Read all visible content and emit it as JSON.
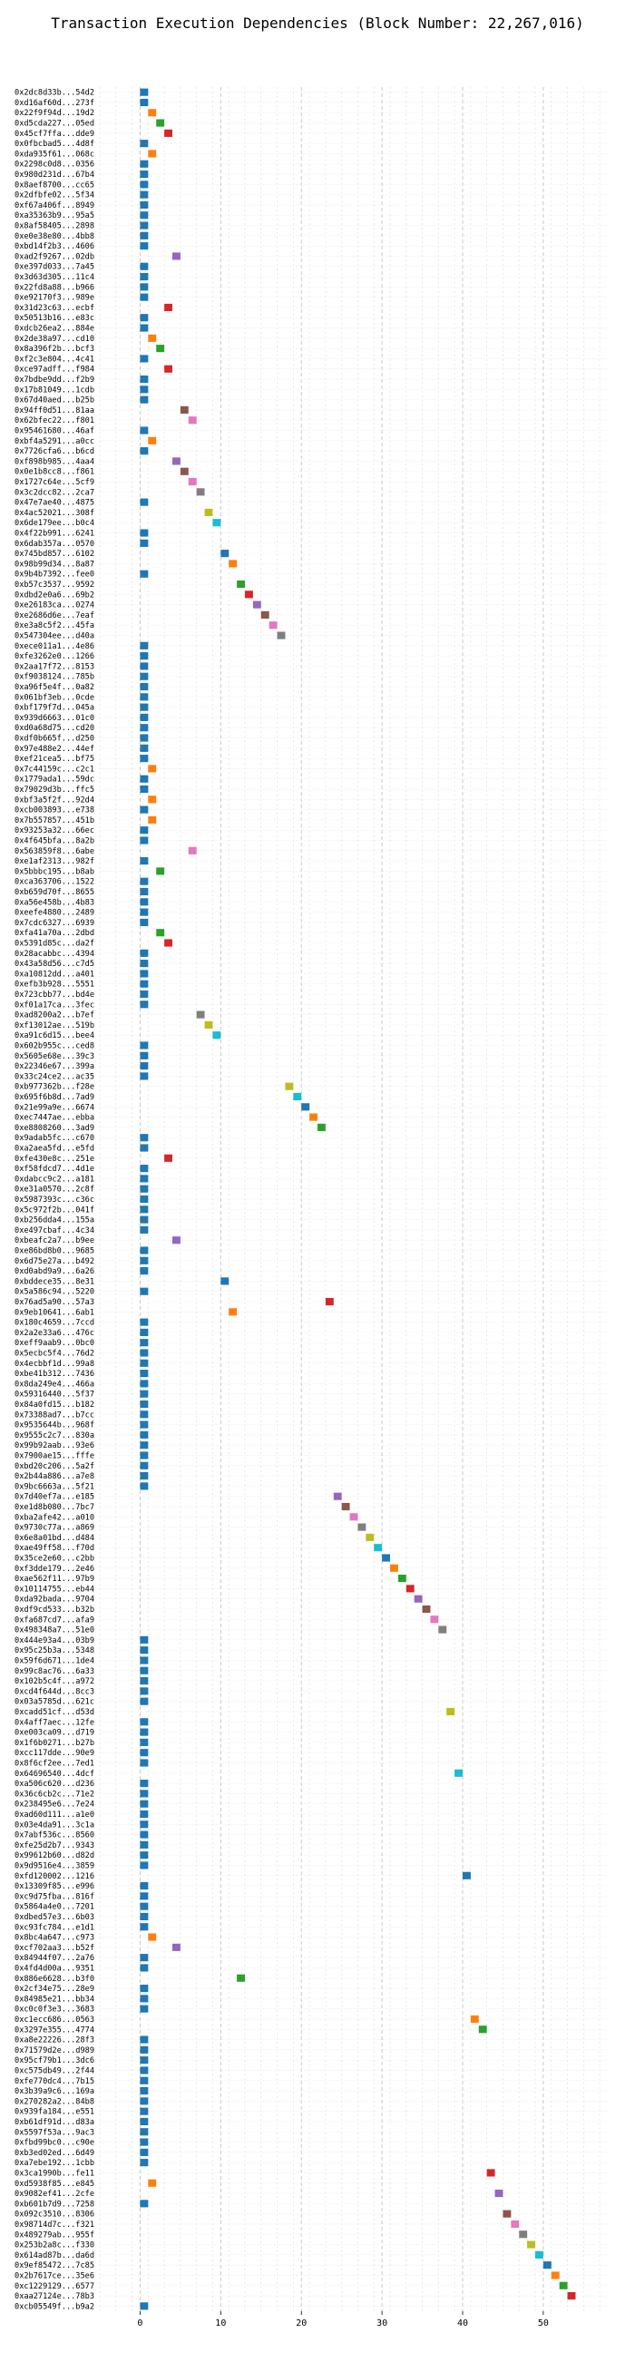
{
  "chart_data": {
    "type": "gantt",
    "title": "Transaction Execution Dependencies (Block Number: 22,267,016)",
    "xlabel": "",
    "ylabel": "",
    "xlim": [
      -5,
      58
    ],
    "xticks": [
      0,
      10,
      20,
      30,
      40,
      50
    ],
    "grid": true,
    "legend": "none",
    "palette": [
      "#1f77b4",
      "#ff7f0e",
      "#2ca02c",
      "#d62728",
      "#9467bd",
      "#8c564b",
      "#e377c2",
      "#7f7f7f",
      "#bcbd22",
      "#17becf"
    ],
    "transactions": [
      {
        "hash": "0x2dc8d33b...54d2",
        "start": 0
      },
      {
        "hash": "0xd16af60d...273f",
        "start": 0
      },
      {
        "hash": "0x22f9f94d...19d2",
        "start": 1
      },
      {
        "hash": "0xd5cda227...05ed",
        "start": 2
      },
      {
        "hash": "0x45cf7ffa...dde9",
        "start": 3
      },
      {
        "hash": "0x0fbcbad5...4d8f",
        "start": 0
      },
      {
        "hash": "0xda935f61...068c",
        "start": 1
      },
      {
        "hash": "0x2298c0d8...0356",
        "start": 0
      },
      {
        "hash": "0x980d231d...67b4",
        "start": 0
      },
      {
        "hash": "0x8aef8700...cc65",
        "start": 0
      },
      {
        "hash": "0x2dfbfe02...5f34",
        "start": 0
      },
      {
        "hash": "0xf67a406f...8949",
        "start": 0
      },
      {
        "hash": "0xa35363b9...95a5",
        "start": 0
      },
      {
        "hash": "0x8af58405...2898",
        "start": 0
      },
      {
        "hash": "0xe0e38e80...4bb8",
        "start": 0
      },
      {
        "hash": "0xbd14f2b3...4606",
        "start": 0
      },
      {
        "hash": "0xad2f9267...02db",
        "start": 4
      },
      {
        "hash": "0xe397d033...7a45",
        "start": 0
      },
      {
        "hash": "0x3d63d305...11c4",
        "start": 0
      },
      {
        "hash": "0x22fd8a88...b966",
        "start": 0
      },
      {
        "hash": "0xe92170f3...989e",
        "start": 0
      },
      {
        "hash": "0x31d23c63...ecbf",
        "start": 3
      },
      {
        "hash": "0x50513b16...e83c",
        "start": 0
      },
      {
        "hash": "0xdcb26ea2...884e",
        "start": 0
      },
      {
        "hash": "0x2de38a97...cd10",
        "start": 1
      },
      {
        "hash": "0x8a396f2b...bcf3",
        "start": 2
      },
      {
        "hash": "0xf2c3e804...4c41",
        "start": 0
      },
      {
        "hash": "0xce97adff...f984",
        "start": 3
      },
      {
        "hash": "0x7bdbe9dd...f2b9",
        "start": 0
      },
      {
        "hash": "0x17b81049...1cdb",
        "start": 0
      },
      {
        "hash": "0x67d40aed...b25b",
        "start": 0
      },
      {
        "hash": "0x94ff0d51...81aa",
        "start": 5
      },
      {
        "hash": "0x62bfec22...f801",
        "start": 6
      },
      {
        "hash": "0x95461680...46af",
        "start": 0
      },
      {
        "hash": "0xbf4a5291...a0cc",
        "start": 1
      },
      {
        "hash": "0x7726cfa6...b6cd",
        "start": 0
      },
      {
        "hash": "0xf898b985...4aa4",
        "start": 4
      },
      {
        "hash": "0x0e1b8cc8...f861",
        "start": 5
      },
      {
        "hash": "0x1727c64e...5cf9",
        "start": 6
      },
      {
        "hash": "0x3c2dcc82...2ca7",
        "start": 7
      },
      {
        "hash": "0x47e7ae40...4875",
        "start": 0
      },
      {
        "hash": "0x4ac52021...308f",
        "start": 8
      },
      {
        "hash": "0x6de179ee...b0c4",
        "start": 9
      },
      {
        "hash": "0x4f22b991...6241",
        "start": 0
      },
      {
        "hash": "0x6dab357a...0570",
        "start": 0
      },
      {
        "hash": "0x745bd857...6102",
        "start": 10
      },
      {
        "hash": "0x98b99d34...8a87",
        "start": 11
      },
      {
        "hash": "0x9b4b7392...fee0",
        "start": 0
      },
      {
        "hash": "0xb57c3537...9592",
        "start": 12
      },
      {
        "hash": "0xdbd2e0a6...69b2",
        "start": 13
      },
      {
        "hash": "0xe26183ca...0274",
        "start": 14
      },
      {
        "hash": "0xe2686d6e...7eaf",
        "start": 15
      },
      {
        "hash": "0xe3a8c5f2...45fa",
        "start": 16
      },
      {
        "hash": "0x547304ee...d40a",
        "start": 17
      },
      {
        "hash": "0xece011a1...4e86",
        "start": 0
      },
      {
        "hash": "0xfe3262e0...1266",
        "start": 0
      },
      {
        "hash": "0x2aa17f72...8153",
        "start": 0
      },
      {
        "hash": "0xf9038124...785b",
        "start": 0
      },
      {
        "hash": "0xa96f5e4f...0a82",
        "start": 0
      },
      {
        "hash": "0x061bf3eb...0cde",
        "start": 0
      },
      {
        "hash": "0xbf179f7d...045a",
        "start": 0
      },
      {
        "hash": "0x939d6663...01c0",
        "start": 0
      },
      {
        "hash": "0xd0a68d75...cd20",
        "start": 0
      },
      {
        "hash": "0xdf0b665f...d250",
        "start": 0
      },
      {
        "hash": "0x97e488e2...44ef",
        "start": 0
      },
      {
        "hash": "0xef21cea5...bf75",
        "start": 0
      },
      {
        "hash": "0x7c44159c...c2c1",
        "start": 1
      },
      {
        "hash": "0x1779ada1...59dc",
        "start": 0
      },
      {
        "hash": "0x79029d3b...ffc5",
        "start": 0
      },
      {
        "hash": "0xbf3a5f2f...92d4",
        "start": 1
      },
      {
        "hash": "0xcb003893...e738",
        "start": 0
      },
      {
        "hash": "0x7b557857...451b",
        "start": 1
      },
      {
        "hash": "0x93253a32...66ec",
        "start": 0
      },
      {
        "hash": "0x4f645bfa...8a2b",
        "start": 0
      },
      {
        "hash": "0x563859f8...6abe",
        "start": 6
      },
      {
        "hash": "0xe1af2313...982f",
        "start": 0
      },
      {
        "hash": "0x5bbbc195...b8ab",
        "start": 2
      },
      {
        "hash": "0xca363706...1522",
        "start": 0
      },
      {
        "hash": "0xb659d70f...8655",
        "start": 0
      },
      {
        "hash": "0xa56e458b...4b83",
        "start": 0
      },
      {
        "hash": "0xeefe4880...2489",
        "start": 0
      },
      {
        "hash": "0x7cdc6327...6939",
        "start": 0
      },
      {
        "hash": "0xfa41a70a...2dbd",
        "start": 2
      },
      {
        "hash": "0x5391d85c...da2f",
        "start": 3
      },
      {
        "hash": "0x28acabbc...4394",
        "start": 0
      },
      {
        "hash": "0x43a58d56...c7d5",
        "start": 0
      },
      {
        "hash": "0xa10812dd...a401",
        "start": 0
      },
      {
        "hash": "0xefb3b928...5551",
        "start": 0
      },
      {
        "hash": "0x723cbb77...bd4e",
        "start": 0
      },
      {
        "hash": "0xf01a17ca...3fec",
        "start": 0
      },
      {
        "hash": "0xad8200a2...b7ef",
        "start": 7
      },
      {
        "hash": "0xf13012ae...519b",
        "start": 8
      },
      {
        "hash": "0xa91c6d15...bee4",
        "start": 9
      },
      {
        "hash": "0x602b955c...ced8",
        "start": 0
      },
      {
        "hash": "0x5605e68e...39c3",
        "start": 0
      },
      {
        "hash": "0x22346e67...399a",
        "start": 0
      },
      {
        "hash": "0x33c24ce2...ac35",
        "start": 0
      },
      {
        "hash": "0xb977362b...f28e",
        "start": 18
      },
      {
        "hash": "0x695f6b8d...7ad9",
        "start": 19
      },
      {
        "hash": "0x21e99a9e...6674",
        "start": 20
      },
      {
        "hash": "0xec7447ae...ebba",
        "start": 21
      },
      {
        "hash": "0xe8808260...3ad9",
        "start": 22
      },
      {
        "hash": "0x9adab5fc...c670",
        "start": 0
      },
      {
        "hash": "0xa2aea5fd...e5fd",
        "start": 0
      },
      {
        "hash": "0xfe430e8c...251e",
        "start": 3
      },
      {
        "hash": "0xf58fdcd7...4d1e",
        "start": 0
      },
      {
        "hash": "0xdabcc9c2...a181",
        "start": 0
      },
      {
        "hash": "0xe31a0570...2c8f",
        "start": 0
      },
      {
        "hash": "0x5987393c...c36c",
        "start": 0
      },
      {
        "hash": "0x5c972f2b...041f",
        "start": 0
      },
      {
        "hash": "0xb256dda4...155a",
        "start": 0
      },
      {
        "hash": "0xe497cbaf...4c34",
        "start": 0
      },
      {
        "hash": "0xbeafc2a7...b9ee",
        "start": 4
      },
      {
        "hash": "0xe86bd8b0...9685",
        "start": 0
      },
      {
        "hash": "0x6d75e27a...b492",
        "start": 0
      },
      {
        "hash": "0xd0abd9a9...6a26",
        "start": 0
      },
      {
        "hash": "0xbddece35...8e31",
        "start": 10
      },
      {
        "hash": "0x5a586c94...5220",
        "start": 0
      },
      {
        "hash": "0x76ad5a90...57a3",
        "start": 23
      },
      {
        "hash": "0x9eb10641...6ab1",
        "start": 11
      },
      {
        "hash": "0x180c4659...7ccd",
        "start": 0
      },
      {
        "hash": "0x2a2e33a6...476c",
        "start": 0
      },
      {
        "hash": "0xeff9aab9...0bc0",
        "start": 0
      },
      {
        "hash": "0x5ecbc5f4...76d2",
        "start": 0
      },
      {
        "hash": "0x4ecbbf1d...99a8",
        "start": 0
      },
      {
        "hash": "0xbe41b312...7436",
        "start": 0
      },
      {
        "hash": "0x8da249e4...466a",
        "start": 0
      },
      {
        "hash": "0x59316440...5f37",
        "start": 0
      },
      {
        "hash": "0x84a0fd15...b182",
        "start": 0
      },
      {
        "hash": "0x73388ad7...b7cc",
        "start": 0
      },
      {
        "hash": "0x9535644b...968f",
        "start": 0
      },
      {
        "hash": "0x9555c2c7...830a",
        "start": 0
      },
      {
        "hash": "0x99b92aab...93e6",
        "start": 0
      },
      {
        "hash": "0x7900ae15...fffe",
        "start": 0
      },
      {
        "hash": "0xbd20c206...5a2f",
        "start": 0
      },
      {
        "hash": "0x2b44a886...a7e8",
        "start": 0
      },
      {
        "hash": "0x9bc6663a...5f21",
        "start": 0
      },
      {
        "hash": "0x7d40ef7a...e185",
        "start": 24
      },
      {
        "hash": "0xe1d8b080...7bc7",
        "start": 25
      },
      {
        "hash": "0xba2afe42...a010",
        "start": 26
      },
      {
        "hash": "0x9730c77a...a869",
        "start": 27
      },
      {
        "hash": "0x6e8a01bd...d484",
        "start": 28
      },
      {
        "hash": "0xae49ff58...f70d",
        "start": 29
      },
      {
        "hash": "0x35ce2e60...c2bb",
        "start": 30
      },
      {
        "hash": "0xf3dde179...2e46",
        "start": 31
      },
      {
        "hash": "0xae562f11...97b9",
        "start": 32
      },
      {
        "hash": "0x10114755...eb44",
        "start": 33
      },
      {
        "hash": "0xda92bada...9704",
        "start": 34
      },
      {
        "hash": "0xdf9cd533...b32b",
        "start": 35
      },
      {
        "hash": "0xfa687cd7...afa9",
        "start": 36
      },
      {
        "hash": "0x498348a7...51e0",
        "start": 37
      },
      {
        "hash": "0x444e93a4...03b9",
        "start": 0
      },
      {
        "hash": "0x95c25b3a...5348",
        "start": 0
      },
      {
        "hash": "0x59f6d671...1de4",
        "start": 0
      },
      {
        "hash": "0x99c8ac76...6a33",
        "start": 0
      },
      {
        "hash": "0x102b5c4f...a972",
        "start": 0
      },
      {
        "hash": "0xcd4f644d...8cc3",
        "start": 0
      },
      {
        "hash": "0x03a5785d...621c",
        "start": 0
      },
      {
        "hash": "0xcadd51cf...d53d",
        "start": 38
      },
      {
        "hash": "0x4aff7aec...12fe",
        "start": 0
      },
      {
        "hash": "0xe003ca09...d719",
        "start": 0
      },
      {
        "hash": "0x1f6b0271...b27b",
        "start": 0
      },
      {
        "hash": "0xcc117dde...90e9",
        "start": 0
      },
      {
        "hash": "0x8f6cf2ee...7ed1",
        "start": 0
      },
      {
        "hash": "0x64696540...4dcf",
        "start": 39
      },
      {
        "hash": "0xa506c620...d236",
        "start": 0
      },
      {
        "hash": "0x36c6cb2c...71e2",
        "start": 0
      },
      {
        "hash": "0x238495e6...7e24",
        "start": 0
      },
      {
        "hash": "0xad60d111...a1e0",
        "start": 0
      },
      {
        "hash": "0x03e4da91...3c1a",
        "start": 0
      },
      {
        "hash": "0x7abf536c...8560",
        "start": 0
      },
      {
        "hash": "0xfe25d2b7...9343",
        "start": 0
      },
      {
        "hash": "0x99612b60...d82d",
        "start": 0
      },
      {
        "hash": "0x9d9516e4...3859",
        "start": 0
      },
      {
        "hash": "0xfd120002...1216",
        "start": 40
      },
      {
        "hash": "0x13309f85...e996",
        "start": 0
      },
      {
        "hash": "0xc9d75fba...816f",
        "start": 0
      },
      {
        "hash": "0x5864a4e0...7201",
        "start": 0
      },
      {
        "hash": "0xdbed57e3...6b03",
        "start": 0
      },
      {
        "hash": "0xc93fc784...e1d1",
        "start": 0
      },
      {
        "hash": "0x8bc4a647...c973",
        "start": 1
      },
      {
        "hash": "0xcf702aa3...b52f",
        "start": 4
      },
      {
        "hash": "0x84944f07...2a76",
        "start": 0
      },
      {
        "hash": "0x4fd4d00a...9351",
        "start": 0
      },
      {
        "hash": "0x886e6628...b3f0",
        "start": 12
      },
      {
        "hash": "0x2cf34e75...28e9",
        "start": 0
      },
      {
        "hash": "0x84985e21...bb34",
        "start": 0
      },
      {
        "hash": "0xc0c0f3e3...3683",
        "start": 0
      },
      {
        "hash": "0xc1ecc686...0563",
        "start": 41
      },
      {
        "hash": "0x3297e355...4774",
        "start": 42
      },
      {
        "hash": "0xa8e22226...28f3",
        "start": 0
      },
      {
        "hash": "0x71579d2e...d989",
        "start": 0
      },
      {
        "hash": "0x95cf79b1...3dc6",
        "start": 0
      },
      {
        "hash": "0xc575db49...2f44",
        "start": 0
      },
      {
        "hash": "0xfe770dc4...7b15",
        "start": 0
      },
      {
        "hash": "0x3b39a9c6...169a",
        "start": 0
      },
      {
        "hash": "0x270282a2...84b8",
        "start": 0
      },
      {
        "hash": "0x939fa184...e551",
        "start": 0
      },
      {
        "hash": "0xb61df91d...d83a",
        "start": 0
      },
      {
        "hash": "0x5597f53a...9ac3",
        "start": 0
      },
      {
        "hash": "0xfbd99bc0...c90e",
        "start": 0
      },
      {
        "hash": "0xb3ed02ed...6d49",
        "start": 0
      },
      {
        "hash": "0xa7ebe192...1cbb",
        "start": 0
      },
      {
        "hash": "0x3ca1990b...fe11",
        "start": 43
      },
      {
        "hash": "0xd5938f85...e845",
        "start": 1
      },
      {
        "hash": "0x9082ef41...2cfe",
        "start": 44
      },
      {
        "hash": "0xb601b7d9...7258",
        "start": 0
      },
      {
        "hash": "0x092c3510...8306",
        "start": 45
      },
      {
        "hash": "0x98714d7c...f321",
        "start": 46
      },
      {
        "hash": "0x489279ab...955f",
        "start": 47
      },
      {
        "hash": "0x253b2a8c...f330",
        "start": 48
      },
      {
        "hash": "0x614ad87b...da6d",
        "start": 49
      },
      {
        "hash": "0x9ef85472...7c85",
        "start": 50
      },
      {
        "hash": "0x2b7617ce...35e6",
        "start": 51
      },
      {
        "hash": "0xc1229129...6577",
        "start": 52
      },
      {
        "hash": "0xaa27124e...78b3",
        "start": 53
      },
      {
        "hash": "0xcb05549f...b9a2",
        "start": 0
      }
    ]
  }
}
